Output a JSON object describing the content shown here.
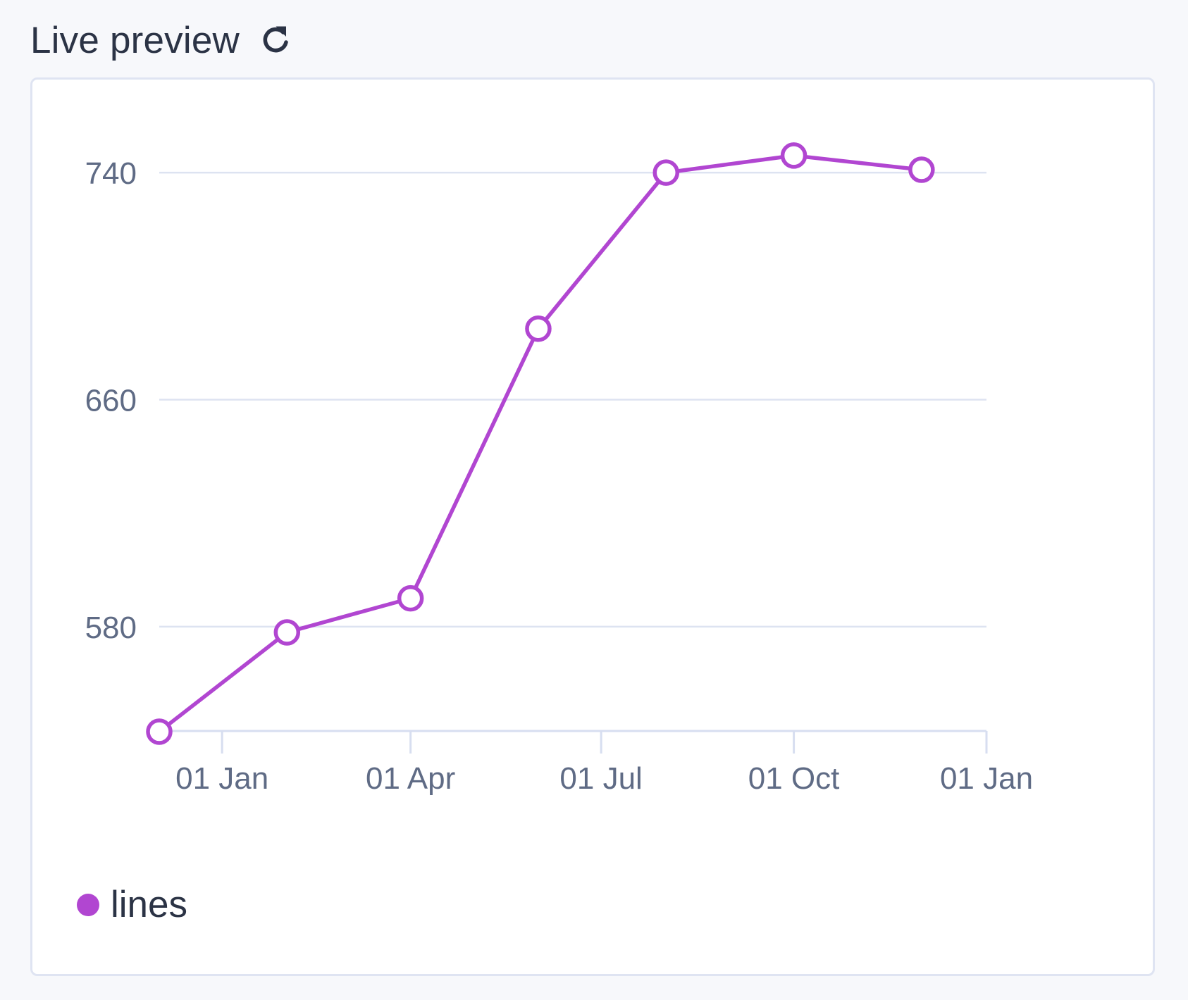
{
  "header": {
    "title": "Live preview",
    "refresh_icon": "refresh-icon"
  },
  "colors": {
    "series": "#b146d1",
    "grid": "#dde3f1",
    "axis": "#d7def0",
    "tick_text": "#5f6b85"
  },
  "chart_data": {
    "type": "line",
    "title": "",
    "xlabel": "",
    "ylabel": "",
    "grid": true,
    "legend_position": "bottom-left",
    "y_ticks": [
      580,
      660,
      740
    ],
    "ylim": [
      543,
      743
    ],
    "x_ticks": [
      {
        "date": "2023-01-01",
        "label": "01 Jan"
      },
      {
        "date": "2023-04-01",
        "label": "01 Apr"
      },
      {
        "date": "2023-07-01",
        "label": "01 Jul"
      },
      {
        "date": "2023-10-01",
        "label": "01 Oct"
      },
      {
        "date": "2024-01-01",
        "label": "01 Jan"
      }
    ],
    "xlim": [
      "2022-12-02",
      "2024-01-01"
    ],
    "series": [
      {
        "name": "lines",
        "points": [
          {
            "x": "2022-12-02",
            "y": 543
          },
          {
            "x": "2023-02-01",
            "y": 578
          },
          {
            "x": "2023-04-01",
            "y": 590
          },
          {
            "x": "2023-06-01",
            "y": 685
          },
          {
            "x": "2023-08-01",
            "y": 740
          },
          {
            "x": "2023-10-01",
            "y": 746
          },
          {
            "x": "2023-12-01",
            "y": 741
          }
        ]
      }
    ]
  }
}
